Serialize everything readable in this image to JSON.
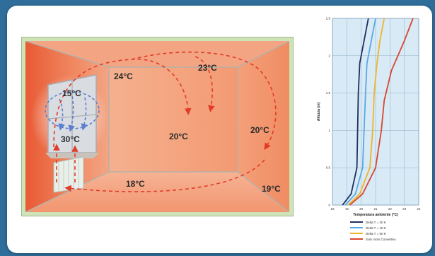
{
  "room": {
    "temperatures": {
      "top_left": "24°C",
      "top_right": "23°C",
      "window_top": "15°C",
      "radiator": "30°C",
      "center": "20°C",
      "right_wall": "20°C",
      "floor": "18°C",
      "bottom_right": "19°C"
    }
  },
  "colors": {
    "warm": "#ef8a5c",
    "hot": "#e4603a",
    "cold": "#5d8fd6",
    "flow": "#e23b2a"
  },
  "chart_data": {
    "type": "line",
    "xlabel": "Temperatura ambiente (°C)",
    "ylabel": "Altezza (m)",
    "xlim": [
      18,
      24
    ],
    "ylim": [
      0,
      2.5
    ],
    "xticks": [
      "18",
      "19",
      "20",
      "21",
      "22",
      "23",
      "24"
    ],
    "yticks": [
      "0",
      "0.5",
      "1",
      "1.5",
      "2",
      "2.5"
    ],
    "grid": true,
    "series": [
      {
        "name": "Delta T = 30 K",
        "color": "#1f2f5e",
        "points": [
          [
            18.7,
            0
          ],
          [
            19.3,
            0.15
          ],
          [
            19.7,
            0.5
          ],
          [
            19.75,
            1.0
          ],
          [
            19.8,
            1.5
          ],
          [
            19.9,
            1.9
          ],
          [
            20.2,
            2.2
          ],
          [
            20.5,
            2.5
          ]
        ]
      },
      {
        "name": "Delta T = 40 K",
        "color": "#5aa8e4",
        "points": [
          [
            18.9,
            0
          ],
          [
            19.6,
            0.15
          ],
          [
            20.1,
            0.5
          ],
          [
            20.2,
            1.0
          ],
          [
            20.3,
            1.5
          ],
          [
            20.4,
            1.9
          ],
          [
            20.7,
            2.2
          ],
          [
            21.0,
            2.5
          ]
        ]
      },
      {
        "name": "Delta T = 50 K",
        "color": "#f0b429",
        "points": [
          [
            19.1,
            0
          ],
          [
            19.9,
            0.15
          ],
          [
            20.6,
            0.5
          ],
          [
            20.8,
            1.0
          ],
          [
            20.9,
            1.5
          ],
          [
            21.1,
            1.9
          ],
          [
            21.3,
            2.2
          ],
          [
            21.6,
            2.5
          ]
        ]
      },
      {
        "name": "Solo moto Convettivo",
        "color": "#d8452f",
        "points": [
          [
            19.2,
            0
          ],
          [
            20.1,
            0.15
          ],
          [
            21.0,
            0.5
          ],
          [
            21.4,
            1.0
          ],
          [
            21.6,
            1.4
          ],
          [
            22.1,
            1.8
          ],
          [
            23.0,
            2.2
          ],
          [
            23.6,
            2.5
          ]
        ]
      }
    ]
  }
}
